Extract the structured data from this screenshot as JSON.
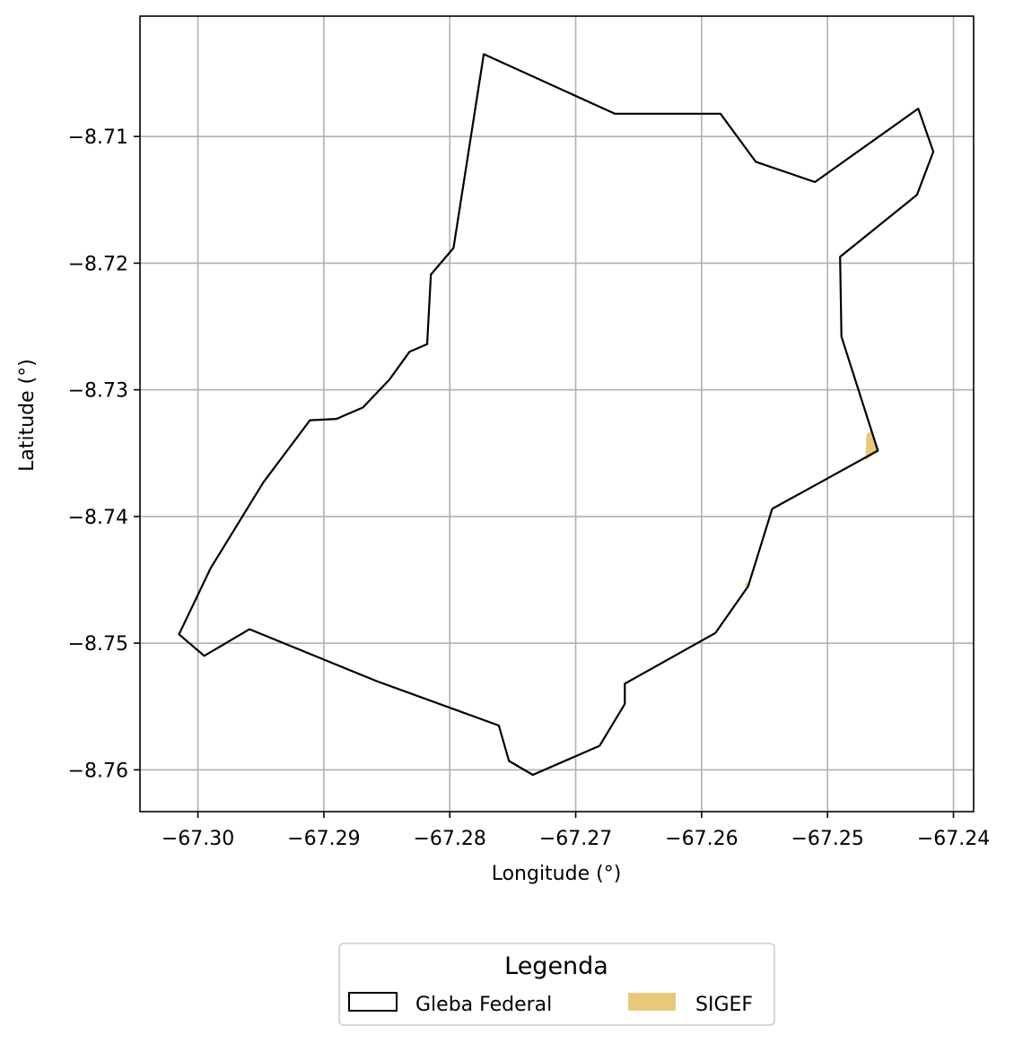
{
  "chart_data": {
    "type": "map",
    "xlabel": "Longitude (°)",
    "ylabel": "Latitude (°)",
    "xlim": [
      -67.3046,
      -67.2384
    ],
    "ylim": [
      -8.7633,
      -8.7005
    ],
    "grid": true,
    "xticks": [
      {
        "value": -67.3,
        "label": "−67.30"
      },
      {
        "value": -67.29,
        "label": "−67.29"
      },
      {
        "value": -67.28,
        "label": "−67.28"
      },
      {
        "value": -67.27,
        "label": "−67.27"
      },
      {
        "value": -67.26,
        "label": "−67.26"
      },
      {
        "value": -67.25,
        "label": "−67.25"
      },
      {
        "value": -67.24,
        "label": "−67.24"
      }
    ],
    "yticks": [
      {
        "value": -8.71,
        "label": "−8.71"
      },
      {
        "value": -8.72,
        "label": "−8.72"
      },
      {
        "value": -8.73,
        "label": "−8.73"
      },
      {
        "value": -8.74,
        "label": "−8.74"
      },
      {
        "value": -8.75,
        "label": "−8.75"
      },
      {
        "value": -8.76,
        "label": "−8.76"
      }
    ],
    "series": [
      {
        "name": "Gleba Federal",
        "kind": "polygon-outline",
        "stroke": "#000000",
        "fill": "none",
        "coords": [
          [
            -67.2773,
            -8.7035
          ],
          [
            -67.2669,
            -8.7082
          ],
          [
            -67.2585,
            -8.7082
          ],
          [
            -67.2557,
            -8.712
          ],
          [
            -67.251,
            -8.7136
          ],
          [
            -67.2428,
            -8.7078
          ],
          [
            -67.2416,
            -8.7112
          ],
          [
            -67.2429,
            -8.7146
          ],
          [
            -67.249,
            -8.7195
          ],
          [
            -67.2489,
            -8.7258
          ],
          [
            -67.246,
            -8.7348
          ],
          [
            -67.2544,
            -8.7394
          ],
          [
            -67.2563,
            -8.7455
          ],
          [
            -67.2589,
            -8.7492
          ],
          [
            -67.2661,
            -8.7532
          ],
          [
            -67.2661,
            -8.7548
          ],
          [
            -67.2681,
            -8.7581
          ],
          [
            -67.2734,
            -8.7604
          ],
          [
            -67.2753,
            -8.7593
          ],
          [
            -67.2761,
            -8.7565
          ],
          [
            -67.2858,
            -8.753
          ],
          [
            -67.2959,
            -8.7489
          ],
          [
            -67.2995,
            -8.751
          ],
          [
            -67.3015,
            -8.7493
          ],
          [
            -67.299,
            -8.7441
          ],
          [
            -67.2948,
            -8.7373
          ],
          [
            -67.2911,
            -8.7324
          ],
          [
            -67.289,
            -8.7323
          ],
          [
            -67.2869,
            -8.7314
          ],
          [
            -67.2848,
            -8.7292
          ],
          [
            -67.2832,
            -8.727
          ],
          [
            -67.2818,
            -8.7264
          ],
          [
            -67.2815,
            -8.7209
          ],
          [
            -67.2797,
            -8.7188
          ]
        ]
      },
      {
        "name": "SIGEF",
        "kind": "polygon-fill",
        "fill": "#daa520",
        "opacity": 0.6,
        "parts": [
          [
            [
              -67.2465,
              -8.7332
            ],
            [
              -67.246,
              -8.7348
            ],
            [
              -67.247,
              -8.7356
            ],
            [
              -67.2469,
              -8.7335
            ]
          ],
          [
            [
              -67.2564,
              -8.7451
            ],
            [
              -67.2563,
              -8.7455
            ],
            [
              -67.2566,
              -8.7455
            ]
          ]
        ]
      }
    ],
    "legend": {
      "title": "Legenda",
      "position": "bottom-center",
      "entries": [
        {
          "label": "Gleba Federal",
          "style": "outline",
          "color": "#000000"
        },
        {
          "label": "SIGEF",
          "style": "fill",
          "color": "#daa520",
          "opacity": 0.6
        }
      ]
    }
  }
}
